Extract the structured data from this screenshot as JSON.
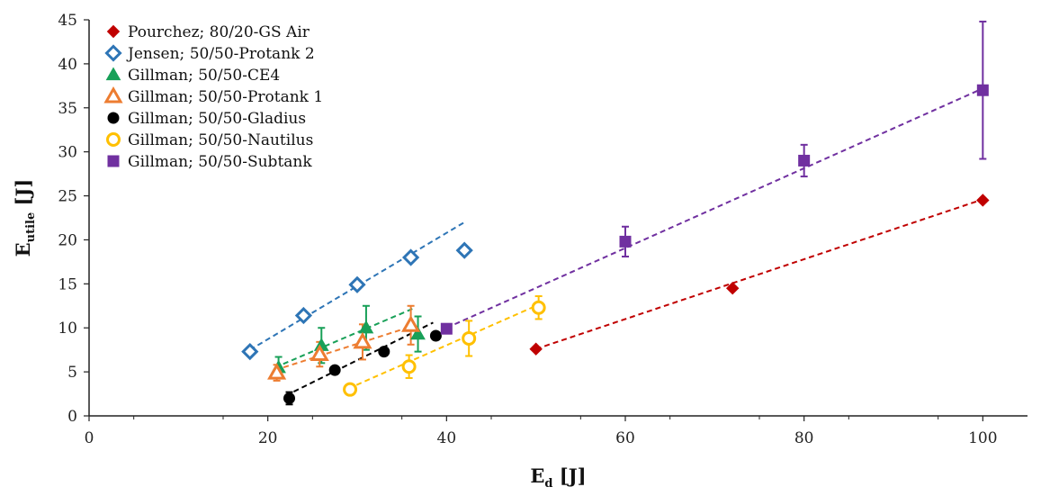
{
  "chart_data": {
    "type": "scatter",
    "xlabel": {
      "main": "E",
      "sub": "d",
      "unit": " [J]"
    },
    "ylabel": {
      "main": "E",
      "sub": "utile",
      "unit": " [J]"
    },
    "xlim": [
      0,
      105
    ],
    "ylim": [
      0,
      45
    ],
    "xticks": [
      0,
      20,
      40,
      60,
      80,
      100
    ],
    "yticks": [
      0,
      5,
      10,
      15,
      20,
      25,
      30,
      35,
      40,
      45
    ],
    "xtick_labels": [
      "0",
      "20",
      "40",
      "60",
      "80",
      "100"
    ],
    "ytick_labels": [
      "0",
      "5",
      "10",
      "15",
      "20",
      "25",
      "30",
      "35",
      "40",
      "45"
    ],
    "grid": false,
    "legend_position": "top-left",
    "series": [
      {
        "name": "Pourchez; 80/20-GS Air",
        "marker": "diamond",
        "filled": true,
        "color": "#c00000",
        "x": [
          50,
          72,
          100
        ],
        "y": [
          7.6,
          14.5,
          24.5
        ],
        "err": [
          0,
          0,
          0
        ],
        "fit": [
          [
            50,
            7.6
          ],
          [
            100,
            24.6
          ]
        ]
      },
      {
        "name": "Jensen; 50/50-Protank 2",
        "marker": "diamond",
        "filled": false,
        "color": "#2e75b6",
        "x": [
          18,
          24,
          30,
          36,
          42
        ],
        "y": [
          7.3,
          11.4,
          14.9,
          18.0,
          18.8
        ],
        "err": [
          0,
          0,
          0,
          0,
          0
        ],
        "fit": [
          [
            18,
            7.5
          ],
          [
            42,
            22.0
          ]
        ]
      },
      {
        "name": "Gillman; 50/50-CE4",
        "marker": "triangle",
        "filled": true,
        "color": "#18a058",
        "x": [
          21.2,
          26,
          31,
          36.8
        ],
        "y": [
          5.5,
          8.0,
          10.0,
          9.3
        ],
        "err": [
          1.2,
          2.0,
          2.5,
          2.0
        ],
        "fit": [
          [
            20.8,
            5.5
          ],
          [
            36.5,
            12.3
          ]
        ]
      },
      {
        "name": "Gillman; 50/50-Protank 1",
        "marker": "triangle",
        "filled": false,
        "color": "#ed7d31",
        "x": [
          21,
          25.8,
          30.6,
          36
        ],
        "y": [
          4.9,
          7.0,
          8.4,
          10.3
        ],
        "err": [
          0.9,
          1.4,
          2.0,
          2.2
        ],
        "fit": [
          [
            20.8,
            5.2
          ],
          [
            36.5,
            10.3
          ]
        ]
      },
      {
        "name": "Gillman; 50/50-Gladius",
        "marker": "circle",
        "filled": true,
        "color": "#000000",
        "x": [
          22.4,
          27.5,
          33,
          38.8
        ],
        "y": [
          2.0,
          5.2,
          7.3,
          9.1
        ],
        "err": [
          0.7,
          0,
          0,
          0
        ],
        "fit": [
          [
            22,
            2.3
          ],
          [
            38.5,
            10.6
          ]
        ]
      },
      {
        "name": "Gillman; 50/50-Nautilus",
        "marker": "circle",
        "filled": false,
        "color": "#ffc000",
        "x": [
          29.2,
          35.8,
          42.5,
          50.3
        ],
        "y": [
          3.0,
          5.6,
          8.8,
          12.3
        ],
        "err": [
          0.4,
          1.3,
          2.0,
          1.3
        ],
        "fit": [
          [
            29,
            3.1
          ],
          [
            50,
            12.5
          ]
        ]
      },
      {
        "name": "Gillman; 50/50-Subtank",
        "marker": "square",
        "filled": true,
        "color": "#7030a0",
        "x": [
          40,
          60,
          80,
          100
        ],
        "y": [
          9.9,
          19.8,
          29.0,
          37.0
        ],
        "err": [
          0,
          1.7,
          1.8,
          7.8
        ],
        "fit": [
          [
            40,
            10.0
          ],
          [
            100,
            37.2
          ]
        ]
      }
    ]
  }
}
